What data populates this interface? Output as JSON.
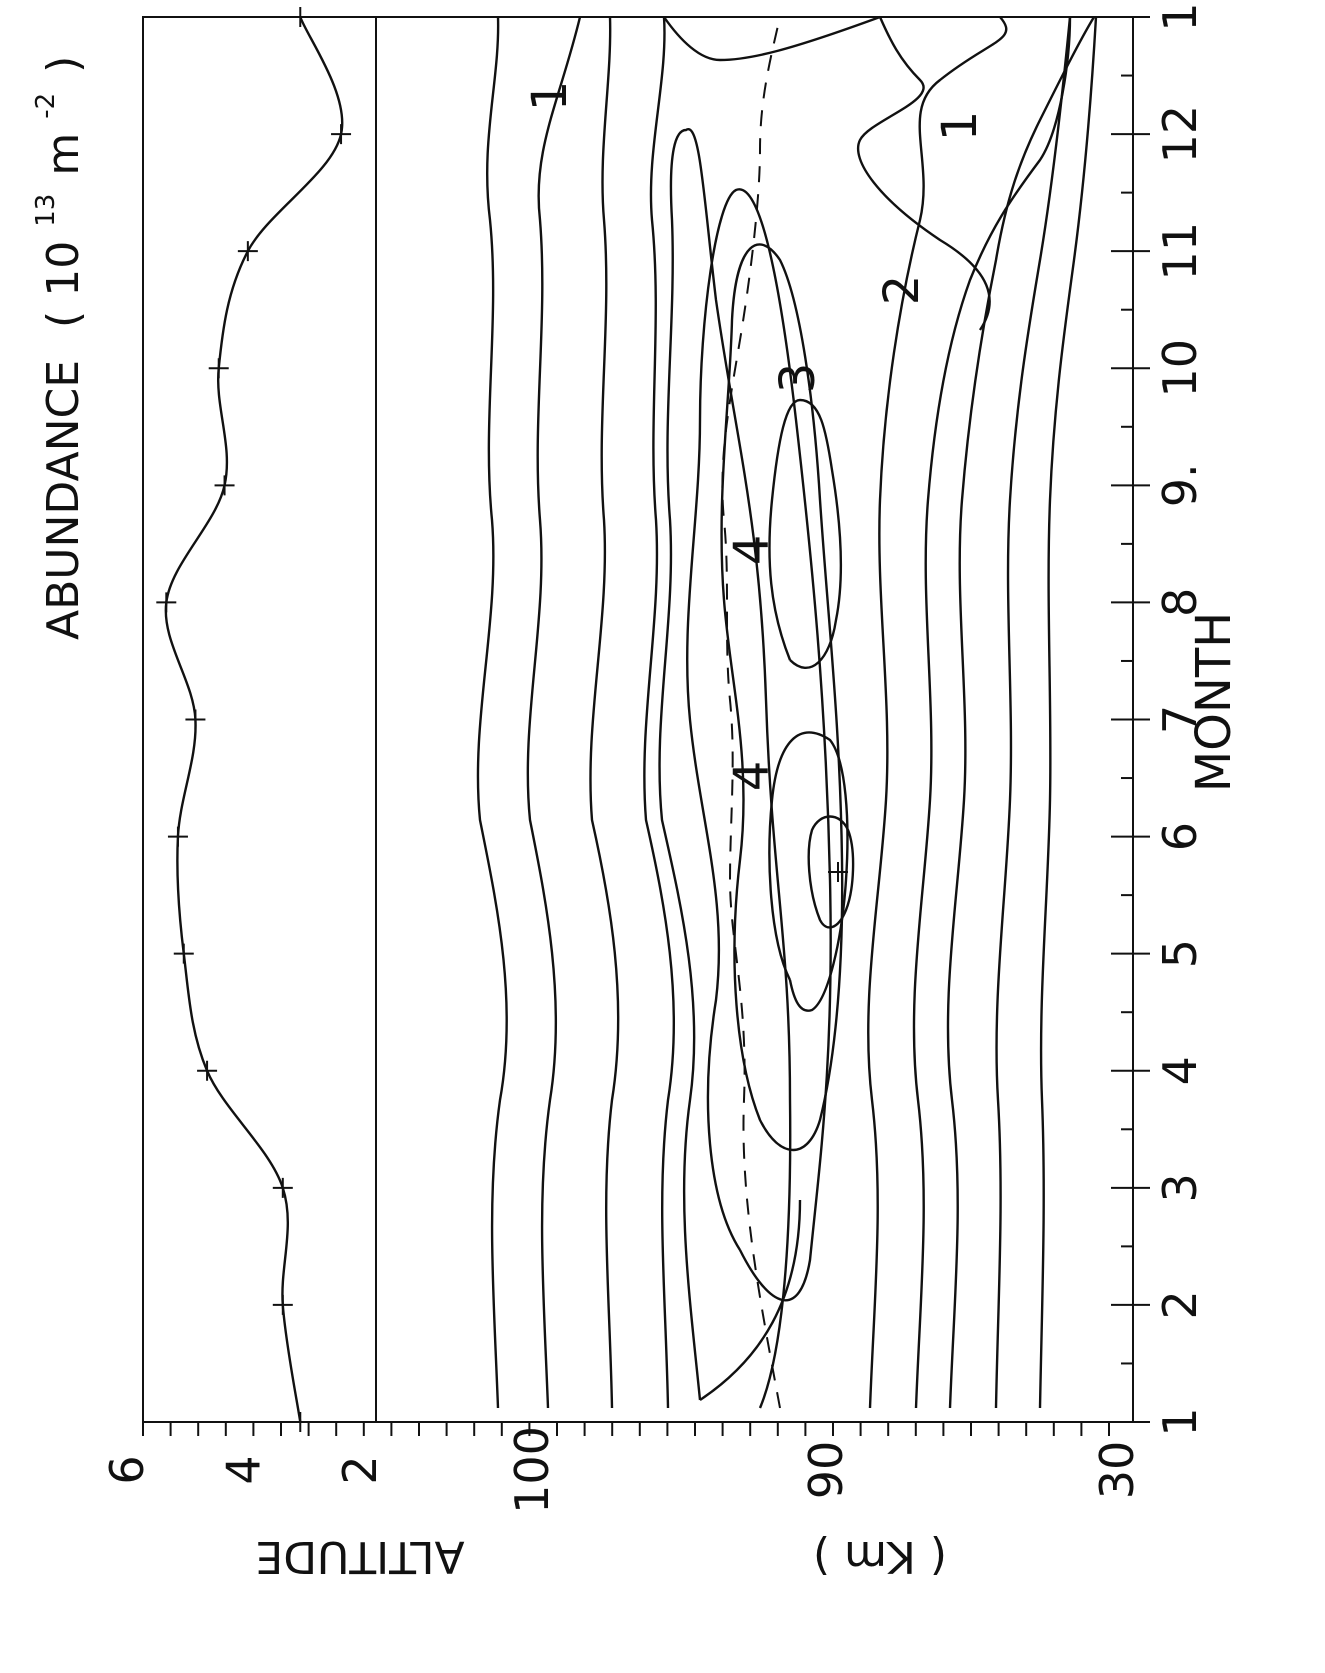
{
  "chart_data": [
    {
      "type": "line",
      "title": "ABUNDANCE (10¹³ m⁻²)",
      "title_parts": {
        "name": "ABUNDANCE",
        "open": "(",
        "base": "10",
        "exp": "13",
        "unit": "m",
        "unit_exp": "-2",
        "close": ")"
      },
      "xlabel": "MONTH",
      "ylabel": "",
      "ylim": [
        2,
        6
      ],
      "yticks": [
        "2",
        "4",
        "6"
      ],
      "x": [
        1,
        2,
        3,
        4,
        5,
        6,
        7,
        8,
        9,
        10,
        11,
        12,
        13
      ],
      "values": [
        3.3,
        3.6,
        3.6,
        4.9,
        5.3,
        5.4,
        5.1,
        5.6,
        4.6,
        4.7,
        4.2,
        2.6,
        3.3
      ],
      "marker": "+"
    },
    {
      "type": "contour",
      "xlabel": "MONTH",
      "xticks": [
        "1",
        "2",
        "3",
        "4",
        "5",
        "6",
        "7",
        "8",
        "9.",
        "10",
        "11",
        "12",
        "1"
      ],
      "ylabel": "ALTITUDE (Km)",
      "ylabel_parts": {
        "name": "ALTITUDE",
        "unit": "( Km )"
      },
      "yticks": [
        "100",
        "90",
        "30"
      ],
      "ylim_note": "altitude axis, 90 km and 100 km marked",
      "contour_labels": [
        "1",
        "1",
        "2",
        "3",
        "4",
        "4"
      ],
      "peak_month": 4.9,
      "peak_altitude_km": 94.3,
      "dashed_line": "altitude of layer peak vs month"
    }
  ]
}
